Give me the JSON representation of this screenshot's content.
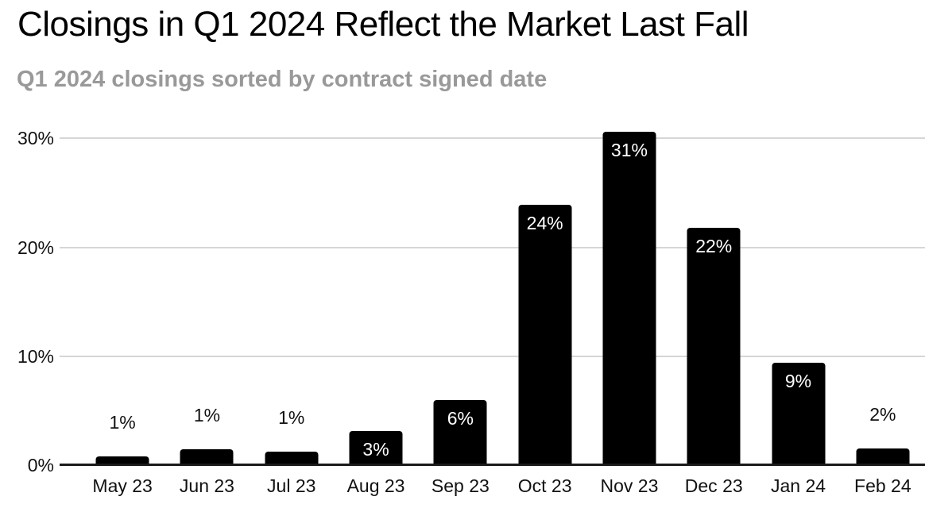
{
  "chart_data": {
    "type": "bar",
    "title": "Closings in Q1 2024 Reflect the Market Last Fall",
    "subtitle": "Q1 2024 closings sorted by contract signed date",
    "categories": [
      "May 23",
      "Jun 23",
      "Jul 23",
      "Aug 23",
      "Sep 23",
      "Oct 23",
      "Nov 23",
      "Dec 23",
      "Jan 24",
      "Feb 24"
    ],
    "values": [
      1,
      1,
      1,
      3,
      6,
      24,
      31,
      22,
      9,
      2
    ],
    "value_labels": [
      "1%",
      "1%",
      "1%",
      "3%",
      "6%",
      "24%",
      "31%",
      "22%",
      "9%",
      "2%"
    ],
    "precise_values": [
      0.8,
      1.45,
      1.25,
      3.1,
      6.0,
      23.9,
      30.6,
      21.8,
      9.4,
      1.5
    ],
    "label_placement": [
      "above",
      "above",
      "above",
      "inside",
      "inside",
      "inside",
      "inside",
      "inside",
      "inside",
      "above"
    ],
    "xlabel": "",
    "ylabel": "",
    "y_ticks": [
      {
        "label": "0%",
        "value": 0
      },
      {
        "label": "10%",
        "value": 10
      },
      {
        "label": "20%",
        "value": 20
      },
      {
        "label": "30%",
        "value": 30
      }
    ],
    "ylim": [
      0,
      32.5
    ],
    "grid": "horizontal",
    "legend": "none",
    "colors": {
      "bar": "#000000",
      "title": "#000000",
      "subtitle": "#999999",
      "gridline": "#d6d6d6",
      "axis_line": "#1a1a1a",
      "axis_label": "#111111",
      "data_label_inside": "#ffffff",
      "data_label_above": "#111111",
      "background": "#ffffff"
    }
  }
}
